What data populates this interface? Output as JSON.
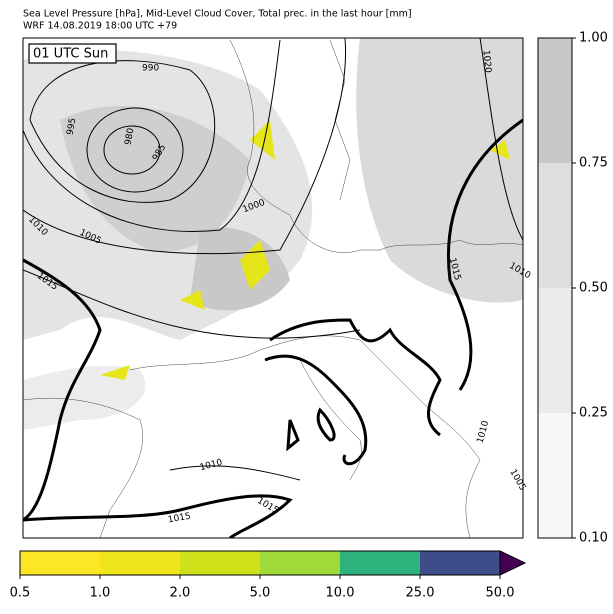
{
  "header": {
    "title_line1": "Sea Level Pressure [hPa], Mid-Level Cloud Cover, Total prec. in the last hour [mm]",
    "title_line2": "WRF 14.08.2019 18:00 UTC +79"
  },
  "map": {
    "time_box": "01 UTC Sun",
    "contour_labels": [
      "990",
      "995",
      "980",
      "985",
      "1000",
      "1005",
      "1010",
      "1015",
      "1015",
      "1010",
      "1020",
      "1010",
      "1005",
      "1010",
      "1015",
      "1015"
    ]
  },
  "cloud_colorbar": {
    "colors": [
      "#f7f7f7",
      "#ebebeb",
      "#dedede",
      "#c8c8c8"
    ],
    "ticks": [
      {
        "value": 0.1,
        "label": "0.10"
      },
      {
        "value": 0.25,
        "label": "0.25"
      },
      {
        "value": 0.5,
        "label": "0.50"
      },
      {
        "value": 0.75,
        "label": "0.75"
      },
      {
        "value": 1,
        "label": "1.00"
      }
    ]
  },
  "precip_colorbar": {
    "colors": [
      "#fde725",
      "#eee51b",
      "#d0e11c",
      "#a0da39",
      "#2db27d",
      "#3e4c8a",
      "#440154"
    ],
    "ticks": [
      0.5,
      {
        "value": 1,
        "label": "1.0"
      },
      {
        "value": 2,
        "label": "2.0"
      },
      {
        "value": 5,
        "label": "5.0"
      },
      {
        "value": 10,
        "label": "10.0"
      },
      {
        "value": 25,
        "label": "25.0"
      },
      {
        "value": 50,
        "label": "50.0"
      }
    ]
  }
}
